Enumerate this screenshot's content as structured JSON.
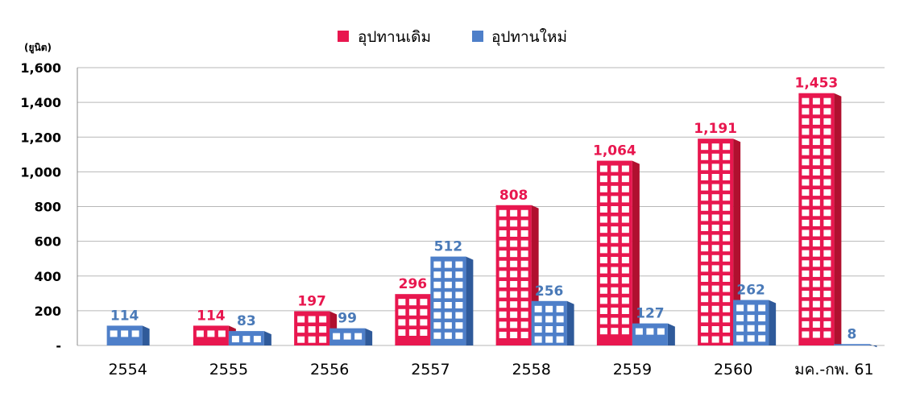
{
  "chart_data": {
    "type": "bar",
    "unit_label": "(ยูนิต)",
    "categories": [
      "2554",
      "2555",
      "2556",
      "2557",
      "2558",
      "2559",
      "2560",
      "มค.-กพ. 61"
    ],
    "series": [
      {
        "name": "อุปทานเดิม",
        "values": [
          null,
          114,
          197,
          296,
          808,
          1064,
          1191,
          1453
        ],
        "labels": [
          "",
          "114",
          "197",
          "296",
          "808",
          "1,064",
          "1,191",
          "1,453"
        ]
      },
      {
        "name": "อุปทานใหม่",
        "values": [
          114,
          83,
          99,
          512,
          256,
          127,
          262,
          8
        ],
        "labels": [
          "114",
          "83",
          "99",
          "512",
          "256",
          "127",
          "262",
          "8"
        ]
      }
    ],
    "ylim": [
      0,
      1600
    ],
    "yticks": [
      0,
      200,
      400,
      600,
      800,
      1000,
      1200,
      1400,
      1600
    ],
    "ytick_labels": [
      "-",
      "200",
      "400",
      "600",
      "800",
      "1,000",
      "1,200",
      "1,400",
      "1,600"
    ],
    "grid": true,
    "legend_position": "top-center",
    "colors": {
      "series_0": "#e8174f",
      "series_0_side": "#b0102f",
      "series_0_label": "#e8174f",
      "series_1": "#4e7fc9",
      "series_1_side": "#2f5a9a",
      "series_1_label": "#4a7ab8",
      "window": "#ffffff",
      "grid": "#b7b7b7"
    }
  }
}
